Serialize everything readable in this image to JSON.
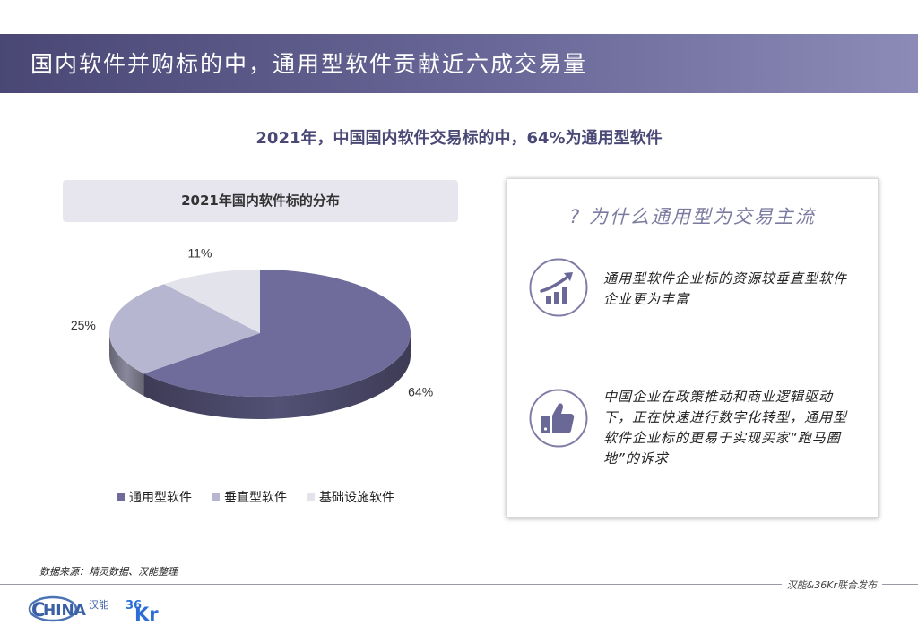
{
  "header": {
    "title": "国内软件并购标的中，通用型软件贡献近六成交易量"
  },
  "subtitle": "2021年，中国国内软件交易标的中，64%为通用型软件",
  "chart_box_title": "2021年国内软件标的分布",
  "chart_data": {
    "type": "pie",
    "title": "2021年国内软件标的分布",
    "slices": [
      {
        "label": "通用型软件",
        "value": 64,
        "value_label": "64%",
        "color": "#6f6c9b"
      },
      {
        "label": "垂直型软件",
        "value": 25,
        "value_label": "25%",
        "color": "#b7b6d0"
      },
      {
        "label": "基础设施软件",
        "value": 11,
        "value_label": "11%",
        "color": "#e3e3ec"
      }
    ],
    "legend_position": "bottom"
  },
  "panel": {
    "title": "? 为什么通用型为交易主流",
    "reasons": [
      {
        "icon": "growth-chart-icon",
        "text": "通用型软件企业标的资源较垂直型软件企业更为丰富"
      },
      {
        "icon": "thumbs-up-icon",
        "text": "中国企业在政策推动和商业逻辑驱动下，正在快速进行数字化转型，通用型软件企业标的更易于实现买家“跑马圈地”的诉求"
      }
    ]
  },
  "source": "数据来源：精灵数据、汉能整理",
  "footer_note": "汉能&36Kr联合发布",
  "logos": {
    "china": "HINA",
    "china_cn": "汉能",
    "kr_num": "36",
    "kr_text": "Kr"
  },
  "colors": {
    "accent": "#5a5888",
    "header_start": "#4a4775",
    "header_end": "#8c8ab6"
  }
}
